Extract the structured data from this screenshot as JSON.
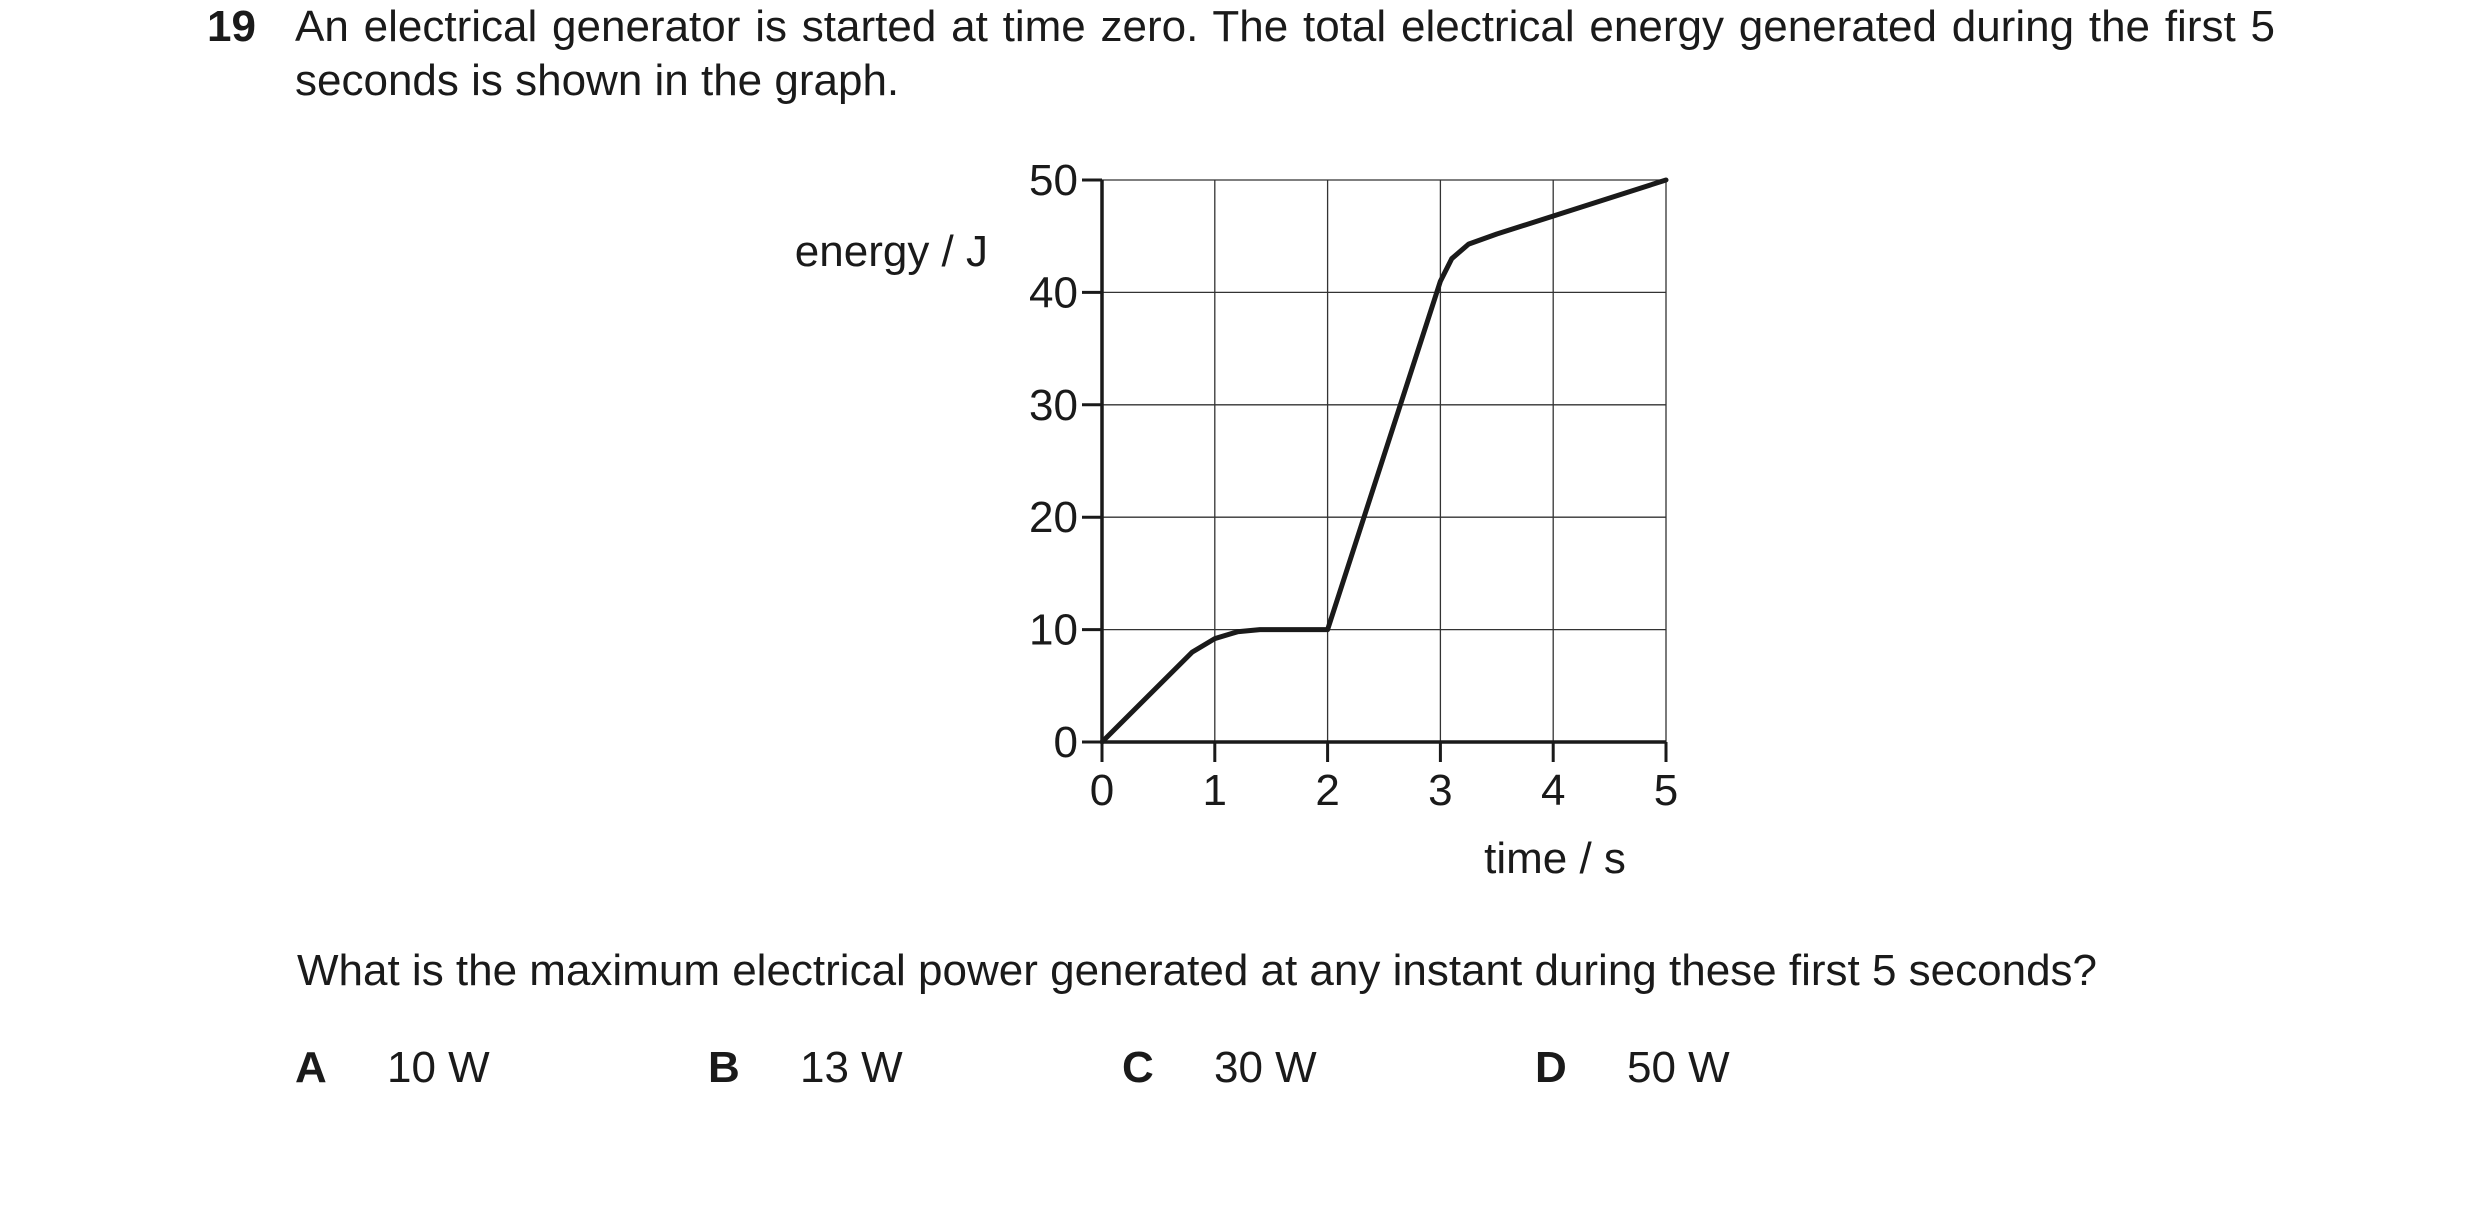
{
  "question": {
    "number": "19",
    "stem": "An electrical generator is started at time zero. The total electrical energy generated during the first 5 seconds is shown in the graph.",
    "prompt": "What is the maximum electrical power generated at any instant during these first 5 seconds?",
    "options": [
      {
        "letter": "A",
        "text": "10 W"
      },
      {
        "letter": "B",
        "text": "13 W"
      },
      {
        "letter": "C",
        "text": "30 W"
      },
      {
        "letter": "D",
        "text": "50 W"
      }
    ]
  },
  "chart_data": {
    "type": "line",
    "title": "",
    "xlabel": "time / s",
    "ylabel": "energy / J",
    "xlim": [
      0,
      5
    ],
    "ylim": [
      0,
      50
    ],
    "xticks": [
      0,
      1,
      2,
      3,
      4,
      5
    ],
    "yticks": [
      0,
      10,
      20,
      30,
      40,
      50
    ],
    "grid": true,
    "series": [
      {
        "x": [
          0,
          0.8,
          1.0,
          1.2,
          1.4,
          2.0,
          3.0,
          3.1,
          3.25,
          3.5,
          5.0
        ],
        "y": [
          0,
          8,
          9.2,
          9.8,
          10,
          10,
          41,
          43,
          44.3,
          45.2,
          50
        ]
      }
    ]
  }
}
